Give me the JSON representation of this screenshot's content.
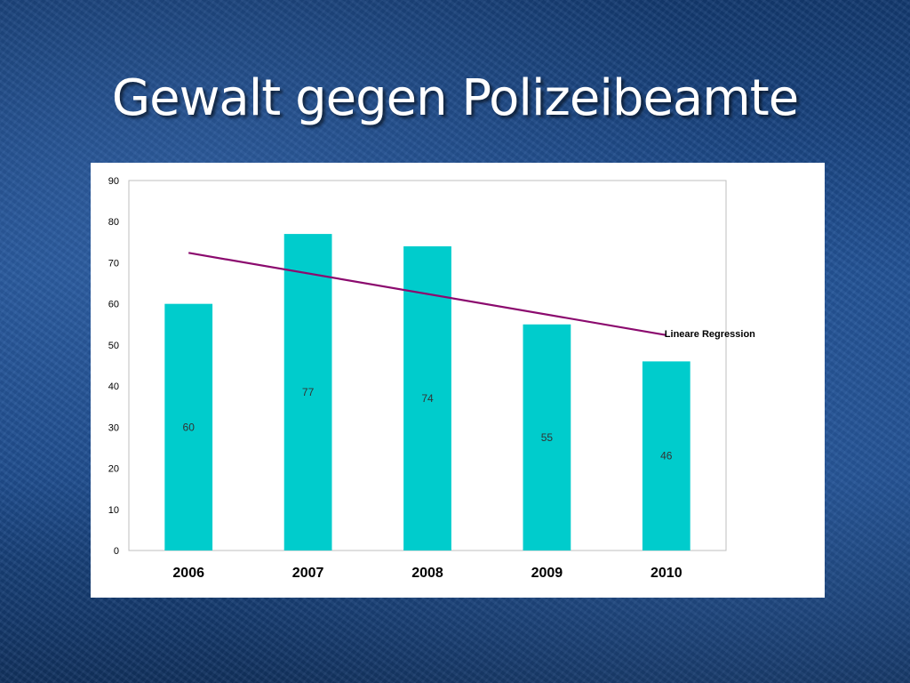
{
  "slide": {
    "title": "Gewalt gegen Polizeibeamte"
  },
  "chart_data": {
    "type": "bar",
    "categories": [
      "2006",
      "2007",
      "2008",
      "2009",
      "2010"
    ],
    "values": [
      60,
      77,
      74,
      55,
      46
    ],
    "data_labels": [
      "60",
      "77",
      "74",
      "55",
      "46"
    ],
    "ylim": [
      0,
      90
    ],
    "yticks": [
      0,
      10,
      20,
      30,
      40,
      50,
      60,
      70,
      80,
      90
    ],
    "bar_color": "#00cccc",
    "grid": false,
    "legend": "none",
    "trendline": {
      "type": "linear",
      "label": "Lineare Regression",
      "color": "#8b0a6e"
    }
  }
}
